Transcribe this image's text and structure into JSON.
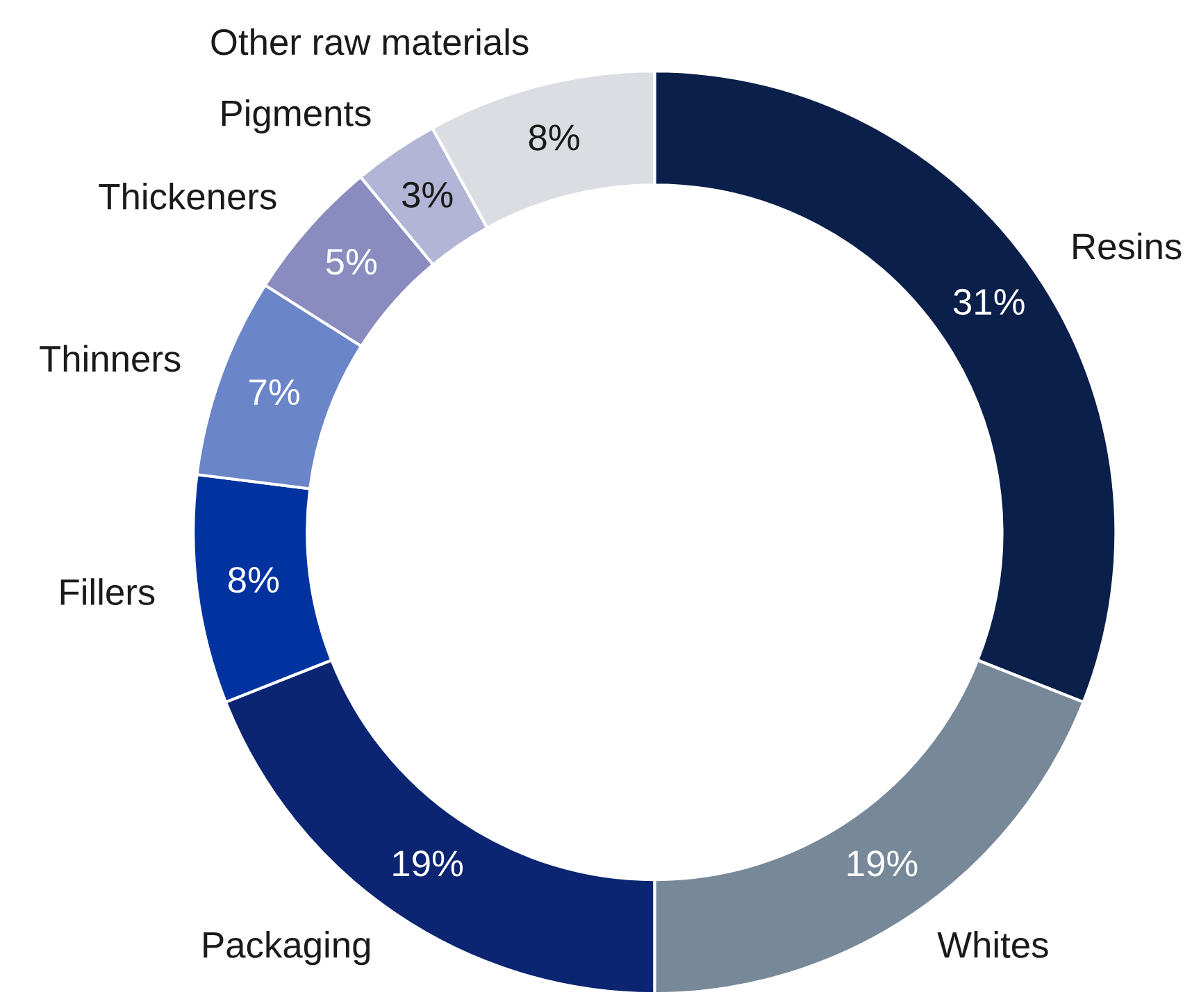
{
  "chart_data": {
    "type": "donut",
    "categories": [
      "Resins",
      "Whites",
      "Packaging",
      "Fillers",
      "Thinners",
      "Thickeners",
      "Pigments",
      "Other raw materials"
    ],
    "values": [
      31,
      19,
      19,
      8,
      7,
      5,
      3,
      8
    ],
    "value_labels": [
      "31%",
      "19%",
      "19%",
      "8%",
      "7%",
      "5%",
      "3%",
      "8%"
    ],
    "colors": [
      "#0a1f4a",
      "#778899",
      "#0b2572",
      "#0033a0",
      "#6a85c8",
      "#8a8cc0",
      "#b3b5d6",
      "#dcdde3"
    ],
    "legend": false
  }
}
